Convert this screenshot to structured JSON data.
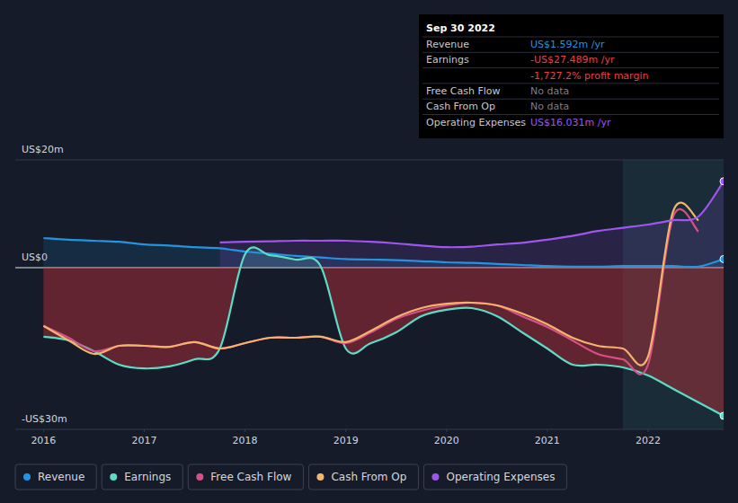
{
  "chart_data": {
    "type": "line",
    "x": [
      2016,
      2016.25,
      2016.5,
      2016.75,
      2017,
      2017.25,
      2017.5,
      2017.75,
      2018,
      2018.25,
      2018.5,
      2018.75,
      2019,
      2019.25,
      2019.5,
      2019.75,
      2020,
      2020.25,
      2020.5,
      2020.75,
      2021,
      2021.25,
      2021.5,
      2021.75,
      2022,
      2022.25,
      2022.5,
      2022.75
    ],
    "xlim": [
      2015.72,
      2022.75
    ],
    "xticks": [
      2016,
      2017,
      2018,
      2019,
      2020,
      2021,
      2022
    ],
    "ylim": [
      -30,
      20
    ],
    "yticks": [
      {
        "value": 20,
        "label": "US$20m"
      },
      {
        "value": 0,
        "label": "US$0"
      },
      {
        "value": -30,
        "label": "-US$30m"
      }
    ],
    "grid": true,
    "legend": "bottom",
    "series": [
      {
        "name": "Revenue",
        "color": "#2394df",
        "marker": "circle",
        "values": [
          5.5,
          5.2,
          5.0,
          4.8,
          4.3,
          4.1,
          3.8,
          3.6,
          3.0,
          2.6,
          2.2,
          1.9,
          1.6,
          1.5,
          1.4,
          1.2,
          1.0,
          0.9,
          0.7,
          0.5,
          0.3,
          0.2,
          0.2,
          0.3,
          0.3,
          0.3,
          0.2,
          1.592
        ]
      },
      {
        "name": "Earnings",
        "color": "#5cdcc6",
        "marker": "circle",
        "values": [
          -12.8,
          -13.5,
          -15.5,
          -18,
          -18.7,
          -18.3,
          -17,
          -15,
          2.5,
          2.3,
          1.5,
          0.3,
          -15,
          -14,
          -12,
          -9,
          -7.8,
          -7.5,
          -9,
          -12,
          -15,
          -18,
          -18,
          -18.5,
          -20,
          -22.5,
          -25,
          -27.489
        ]
      },
      {
        "name": "Free Cash Flow",
        "color": "#d94f87",
        "values": [
          -10.8,
          -13,
          -15.5,
          -14.5,
          -14.5,
          -14.7,
          -13.8,
          -15,
          -14,
          -13,
          -13,
          -12.8,
          -14,
          -12,
          -9.5,
          -8,
          -7,
          -6.5,
          -7,
          -9,
          -11,
          -13.5,
          -16,
          -17,
          -18,
          9.5,
          6.7,
          null
        ]
      },
      {
        "name": "Cash From Op",
        "color": "#f4b46c",
        "values": [
          -10.8,
          -13.5,
          -16,
          -14.5,
          -14.5,
          -14.7,
          -13.8,
          -15,
          -14,
          -13,
          -13,
          -12.8,
          -13.8,
          -11.7,
          -9.2,
          -7.5,
          -6.7,
          -6.5,
          -7,
          -8.5,
          -10.5,
          -13,
          -14.5,
          -15,
          -16.5,
          10.5,
          8.8,
          null
        ]
      },
      {
        "name": "Operating Expenses",
        "color": "#a155f0",
        "marker": "circle",
        "values": [
          null,
          null,
          null,
          null,
          null,
          null,
          null,
          4.7,
          4.8,
          4.9,
          5.0,
          5.0,
          5.0,
          4.8,
          4.5,
          4.1,
          3.8,
          3.9,
          4.3,
          4.6,
          5.2,
          5.9,
          6.8,
          7.4,
          8.0,
          8.8,
          9.5,
          16.031
        ]
      }
    ],
    "annotations": {
      "title": "Sep 30 2022",
      "rows": [
        {
          "label": "Revenue",
          "value": "US$1.592m /yr",
          "color": "#2394df"
        },
        {
          "label": "Earnings",
          "value": "-US$27.489m /yr",
          "color": "#e8414a"
        },
        {
          "value": "-1,727.2% profit margin",
          "color": "#e8414a"
        },
        {
          "label": "Free Cash Flow",
          "value": "No data",
          "color": "#7a7f8a"
        },
        {
          "label": "Cash From Op",
          "value": "No data",
          "color": "#7a7f8a"
        },
        {
          "label": "Operating Expenses",
          "value": "US$16.031m /yr",
          "color": "#a155f0"
        }
      ]
    }
  }
}
